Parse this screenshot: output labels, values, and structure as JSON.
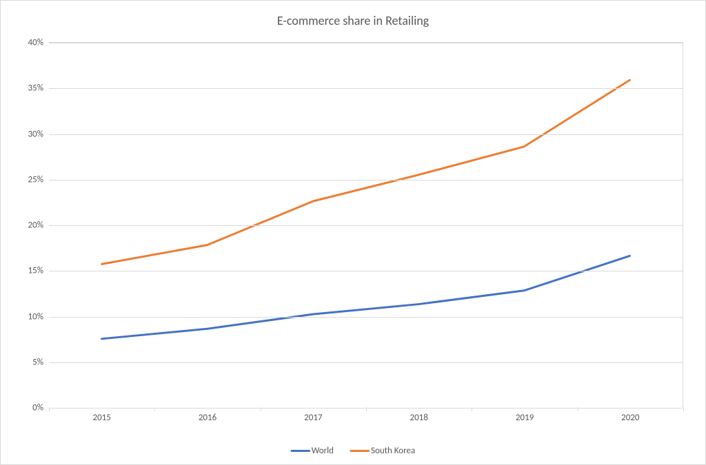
{
  "chart": {
    "type": "line",
    "title": "E-commerce share in Retailing",
    "title_fontsize": 18,
    "title_color": "#595959",
    "background_color": "#ffffff",
    "border_color": "#d9d9d9",
    "grid_color": "#d9d9d9",
    "label_color": "#595959",
    "label_fontsize": 13,
    "line_width": 3,
    "x": {
      "categories": [
        "2015",
        "2016",
        "2017",
        "2018",
        "2019",
        "2020"
      ]
    },
    "y": {
      "min": 0,
      "max": 40,
      "tick_step": 5,
      "format": "percent",
      "ticks": [
        "0%",
        "5%",
        "10%",
        "15%",
        "20%",
        "25%",
        "30%",
        "35%",
        "40%"
      ]
    },
    "series": [
      {
        "name": "World",
        "color": "#4472c4",
        "values": [
          7.5,
          8.6,
          10.2,
          11.3,
          12.8,
          16.6
        ]
      },
      {
        "name": "South Korea",
        "color": "#ed7d31",
        "values": [
          15.7,
          17.8,
          22.6,
          25.5,
          28.6,
          35.9
        ]
      }
    ],
    "legend": {
      "position": "bottom",
      "items": [
        "World",
        "South Korea"
      ]
    }
  }
}
